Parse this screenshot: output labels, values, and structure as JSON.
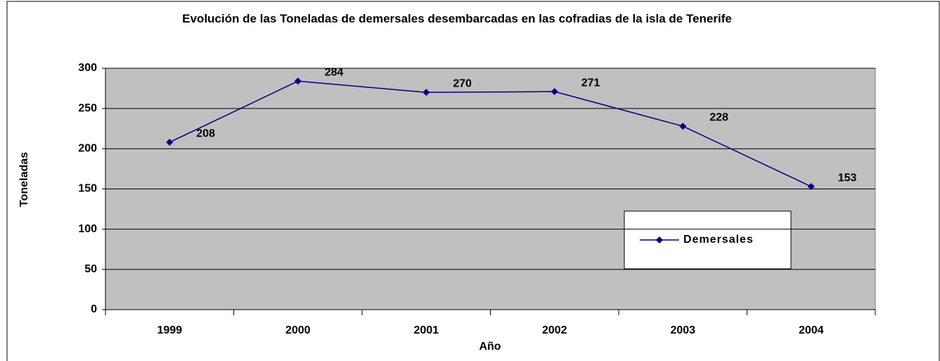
{
  "chart_data": {
    "type": "line",
    "title": "Evolución de las Toneladas de demersales desembarcadas en las cofradias de la isla de Tenerife",
    "x_label": "Año",
    "y_label": "Toneladas",
    "categories": [
      "1999",
      "2000",
      "2001",
      "2002",
      "2003",
      "2004"
    ],
    "series": [
      {
        "name": "Demersales",
        "color": "#000080",
        "values": [
          208,
          284,
          270,
          271,
          228,
          153
        ]
      }
    ],
    "ylim": [
      0,
      300
    ],
    "yticks": [
      0,
      50,
      100,
      150,
      200,
      250,
      300
    ],
    "grid": true,
    "legend": "right"
  }
}
